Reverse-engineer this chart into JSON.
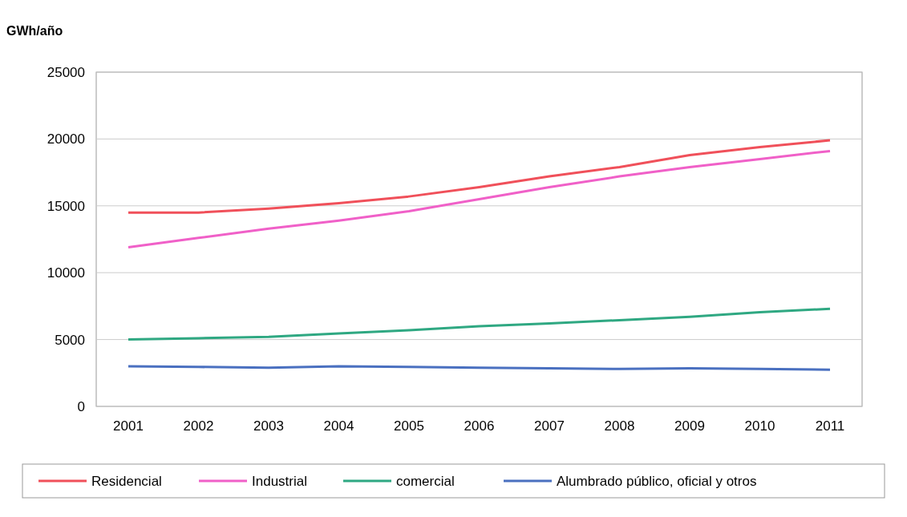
{
  "chart_data": {
    "type": "line",
    "ylabel": "GWh/año",
    "categories": [
      "2001",
      "2002",
      "2003",
      "2004",
      "2005",
      "2006",
      "2007",
      "2008",
      "2009",
      "2010",
      "2011"
    ],
    "ylim": [
      0,
      25000
    ],
    "yticks": [
      0,
      5000,
      10000,
      15000,
      20000,
      25000
    ],
    "grid": "y",
    "legend": "bottom",
    "marker": "none",
    "line_style": "solid",
    "series": [
      {
        "name": "Residencial",
        "color": "#f0505a",
        "values": [
          14500,
          14500,
          14800,
          15200,
          15700,
          16400,
          17200,
          17900,
          18800,
          19400,
          19900
        ]
      },
      {
        "name": "Industrial",
        "color": "#f060c8",
        "values": [
          11900,
          12600,
          13300,
          13900,
          14600,
          15500,
          16400,
          17200,
          17900,
          18500,
          19100
        ]
      },
      {
        "name": "comercial",
        "color": "#2fa882",
        "values": [
          5000,
          5100,
          5200,
          5450,
          5700,
          6000,
          6200,
          6450,
          6700,
          7050,
          7300
        ]
      },
      {
        "name": "Alumbrado público, oficial y otros",
        "color": "#4a70c0",
        "values": [
          3000,
          2950,
          2900,
          3000,
          2950,
          2900,
          2850,
          2800,
          2850,
          2800,
          2750
        ]
      }
    ]
  }
}
